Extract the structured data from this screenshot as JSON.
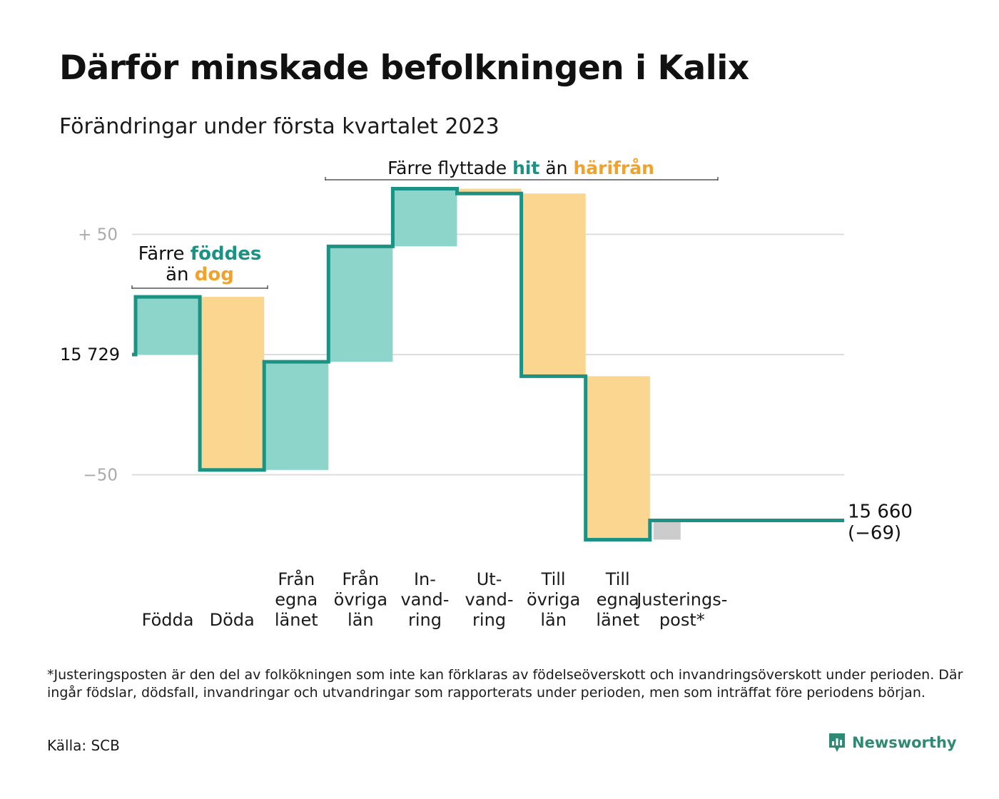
{
  "title": "Därför minskade befolkningen i Kalix",
  "subtitle": "Förändringar under första kvartalet 2023",
  "footnote": "*Justeringsposten är den del av folkökningen som inte kan förklaras av födelseöverskott och invandringsöverskott under perioden. Där ingår födslar, dödsfall, invandringar och utvandringar som rapporterats under perioden, men som inträffat före periodens början.",
  "source": "Källa: SCB",
  "brand": {
    "name": "Newsworthy",
    "logo_icon": "newsworthy-logo-icon"
  },
  "colors": {
    "increase": "#8dd5cb",
    "decrease": "#fad690",
    "adjustment": "#cccccc",
    "line": "#1b9283",
    "teal_text": "#1b9283",
    "orange_text": "#f0a22a",
    "grid": "#dddddd",
    "tick_text": "#aaaaaa"
  },
  "annotations": {
    "births_group": {
      "p1": "Färre",
      "highlight1": "föddes",
      "p2": "än",
      "highlight2": "dog"
    },
    "migration_group": {
      "p1": "Färre flyttade",
      "highlight1": "hit",
      "p2": "än",
      "highlight2": "härifrån"
    }
  },
  "chart_data": {
    "type": "waterfall",
    "start_value": 15729,
    "start_label": "15 729",
    "end_value": 15660,
    "end_label": "15 660",
    "end_change_label": "(−69)",
    "y_ticks": [
      {
        "value": 50,
        "label": "+ 50"
      },
      {
        "value": -50,
        "label": "−50"
      }
    ],
    "ylim": [
      -78,
      70
    ],
    "steps": [
      {
        "label": [
          "Födda"
        ],
        "change": 24,
        "kind": "increase"
      },
      {
        "label": [
          "Döda"
        ],
        "change": -72,
        "kind": "decrease"
      },
      {
        "label": [
          "Från",
          "egna",
          "länet"
        ],
        "change": 45,
        "kind": "increase"
      },
      {
        "label": [
          "Från",
          "övriga",
          "län"
        ],
        "change": 48,
        "kind": "increase"
      },
      {
        "label": [
          "In-",
          "vand-",
          "ring"
        ],
        "change": 24,
        "kind": "increase"
      },
      {
        "label": [
          "Ut-",
          "vand-",
          "ring"
        ],
        "change": -2,
        "kind": "decrease"
      },
      {
        "label": [
          "Till",
          "övriga",
          "län"
        ],
        "change": -76,
        "kind": "decrease"
      },
      {
        "label": [
          "Till",
          "egna",
          "länet"
        ],
        "change": -68,
        "kind": "decrease"
      },
      {
        "label": [
          "Justerings-",
          "post*"
        ],
        "change": 8,
        "kind": "adjustment"
      }
    ],
    "grid": true
  }
}
